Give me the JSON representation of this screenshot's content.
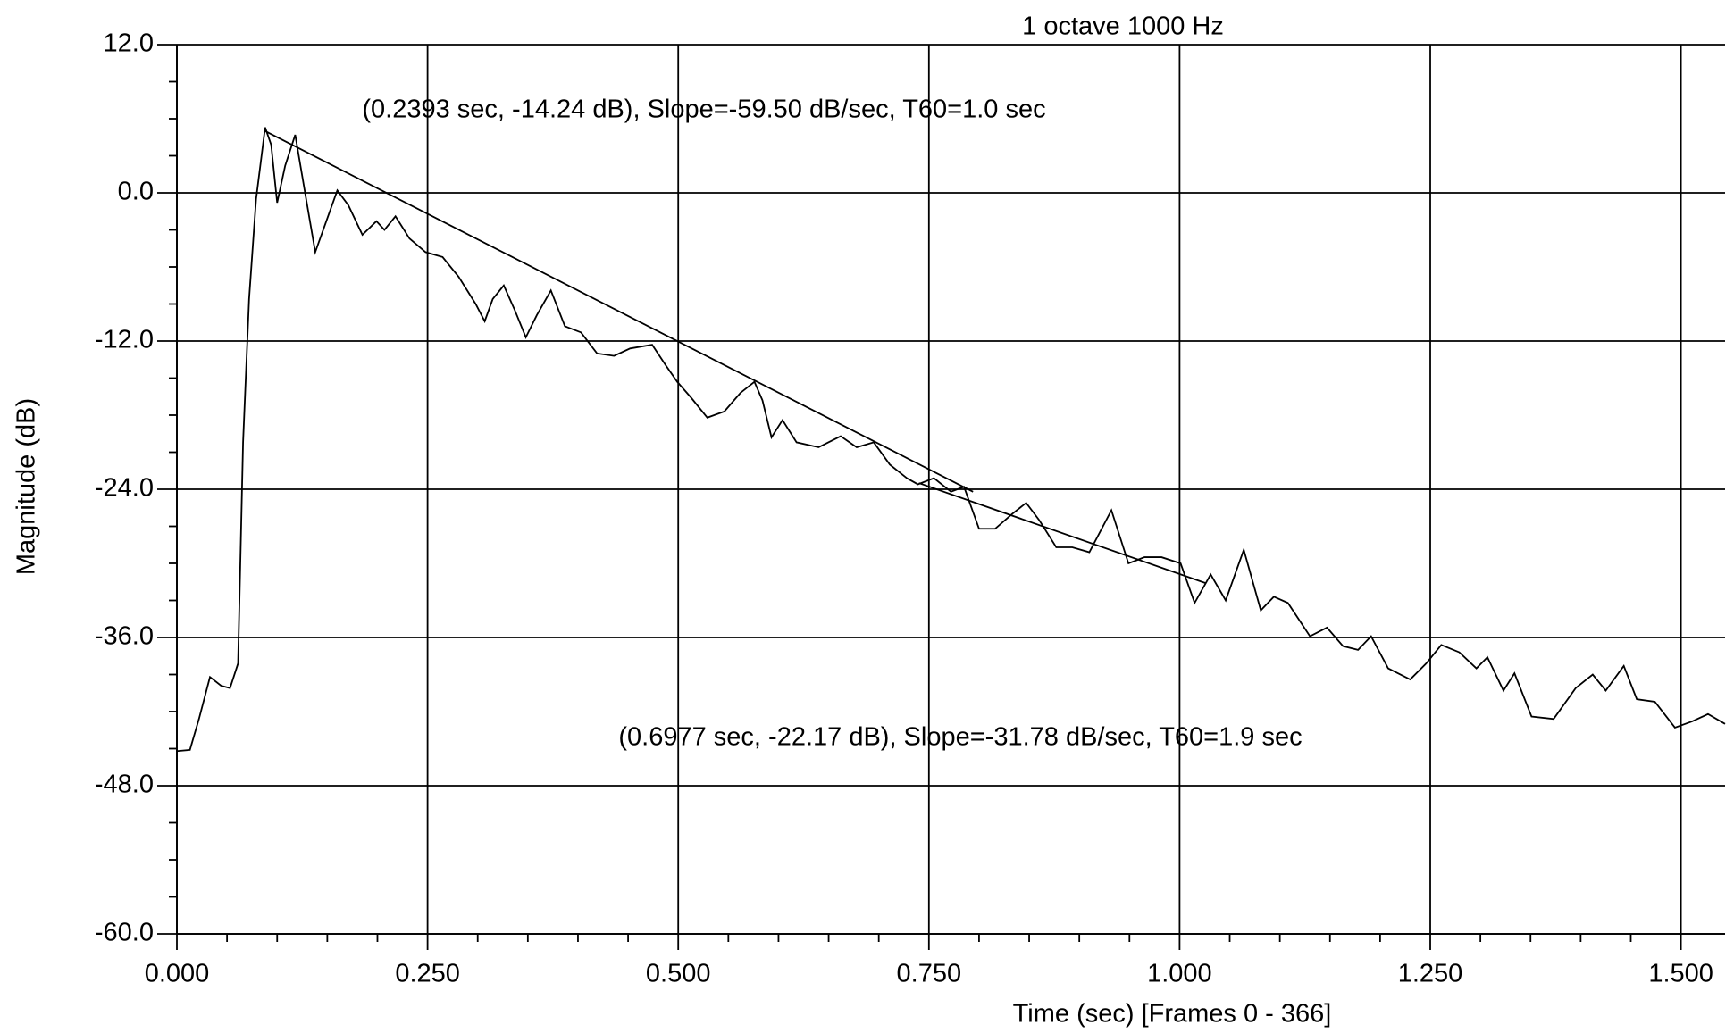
{
  "chart_data": {
    "type": "line",
    "title": "1 octave 1000 Hz",
    "xlabel": "Time (sec)  [Frames 0 - 366]",
    "ylabel": "Magnitude (dB)",
    "annotations": [
      "(0.2393 sec, -14.24 dB),  Slope=-59.50 dB/sec, T60=1.0 sec",
      "(0.6977 sec, -22.17 dB),  Slope=-31.78 dB/sec, T60=1.9 sec"
    ],
    "xlim": [
      0,
      1.544
    ],
    "ylim": [
      -60,
      12
    ],
    "xticks": [
      {
        "value": 0,
        "label": "0.000"
      },
      {
        "value": 0.25,
        "label": "0.250"
      },
      {
        "value": 0.5,
        "label": "0.500"
      },
      {
        "value": 0.75,
        "label": "0.750"
      },
      {
        "value": 1,
        "label": "1.000"
      },
      {
        "value": 1.25,
        "label": "1.250"
      },
      {
        "value": 1.5,
        "label": "1.500"
      }
    ],
    "yticks": [
      {
        "value": 12,
        "label": "12.0"
      },
      {
        "value": 0,
        "label": "0.0"
      },
      {
        "value": -12,
        "label": "-12.0"
      },
      {
        "value": -24,
        "label": "-24.0"
      },
      {
        "value": -36,
        "label": "-36.0"
      },
      {
        "value": -48,
        "label": "-48.0"
      },
      {
        "value": -60,
        "label": "-60.0"
      }
    ],
    "grid": true,
    "series": [
      {
        "color": "#000000",
        "x": [
          0,
          0.013,
          0.022,
          0.033,
          0.044,
          0.053,
          0.061,
          0.066,
          0.072,
          0.079,
          0.088,
          0.094,
          0.1,
          0.108,
          0.118,
          0.127,
          0.138,
          0.149,
          0.16,
          0.171,
          0.185,
          0.199,
          0.207,
          0.218,
          0.232,
          0.248,
          0.265,
          0.281,
          0.298,
          0.307,
          0.315,
          0.326,
          0.337,
          0.348,
          0.359,
          0.373,
          0.387,
          0.403,
          0.419,
          0.436,
          0.452,
          0.474,
          0.487,
          0.499,
          0.513,
          0.529,
          0.546,
          0.562,
          0.576,
          0.584,
          0.593,
          0.604,
          0.618,
          0.64,
          0.662,
          0.678,
          0.695,
          0.711,
          0.728,
          0.739,
          0.755,
          0.772,
          0.785,
          0.8,
          0.816,
          0.833,
          0.847,
          0.86,
          0.877,
          0.893,
          0.91,
          0.932,
          0.949,
          0.965,
          0.982,
          1.001,
          1.015,
          1.031,
          1.046,
          1.064,
          1.081,
          1.094,
          1.108,
          1.13,
          1.147,
          1.163,
          1.178,
          1.191,
          1.208,
          1.23,
          1.246,
          1.261,
          1.279,
          1.296,
          1.307,
          1.323,
          1.334,
          1.351,
          1.373,
          1.395,
          1.412,
          1.425,
          1.443,
          1.456,
          1.474,
          1.494,
          1.511,
          1.527,
          1.544
        ],
        "values": [
          -45.2,
          -45.1,
          -42.6,
          -39.2,
          -39.9,
          -40.1,
          -38.1,
          -20.2,
          -8.6,
          -0.5,
          5.3,
          3.9,
          -0.8,
          2.2,
          4.7,
          0.4,
          -4.8,
          -2.3,
          0.2,
          -1.0,
          -3.4,
          -2.3,
          -3.0,
          -1.9,
          -3.7,
          -4.8,
          -5.2,
          -6.8,
          -9.0,
          -10.4,
          -8.6,
          -7.5,
          -9.5,
          -11.7,
          -9.9,
          -7.9,
          -10.8,
          -11.3,
          -13.0,
          -13.2,
          -12.6,
          -12.3,
          -13.9,
          -15.3,
          -16.6,
          -18.2,
          -17.7,
          -16.2,
          -15.3,
          -16.8,
          -19.8,
          -18.4,
          -20.2,
          -20.6,
          -19.7,
          -20.6,
          -20.2,
          -22.0,
          -23.1,
          -23.6,
          -23.1,
          -24.2,
          -23.8,
          -27.2,
          -27.2,
          -26.0,
          -25.1,
          -26.5,
          -28.7,
          -28.7,
          -29.1,
          -25.7,
          -30.0,
          -29.5,
          -29.5,
          -30.0,
          -33.2,
          -30.9,
          -33.0,
          -28.9,
          -33.8,
          -32.7,
          -33.2,
          -35.9,
          -35.2,
          -36.7,
          -37.0,
          -35.9,
          -38.5,
          -39.4,
          -38.1,
          -36.6,
          -37.2,
          -38.5,
          -37.6,
          -40.3,
          -38.9,
          -42.4,
          -42.6,
          -40.1,
          -39.0,
          -40.3,
          -38.3,
          -41.0,
          -41.2,
          -43.3,
          -42.8,
          -42.2,
          -43.0
        ]
      },
      {
        "color": "#000000",
        "x": [
          0.088,
          0.794
        ],
        "values": [
          5.0,
          -24.2
        ]
      },
      {
        "color": "#000000",
        "x": [
          0.74,
          1.026
        ],
        "values": [
          -23.5,
          -31.6
        ]
      }
    ]
  }
}
